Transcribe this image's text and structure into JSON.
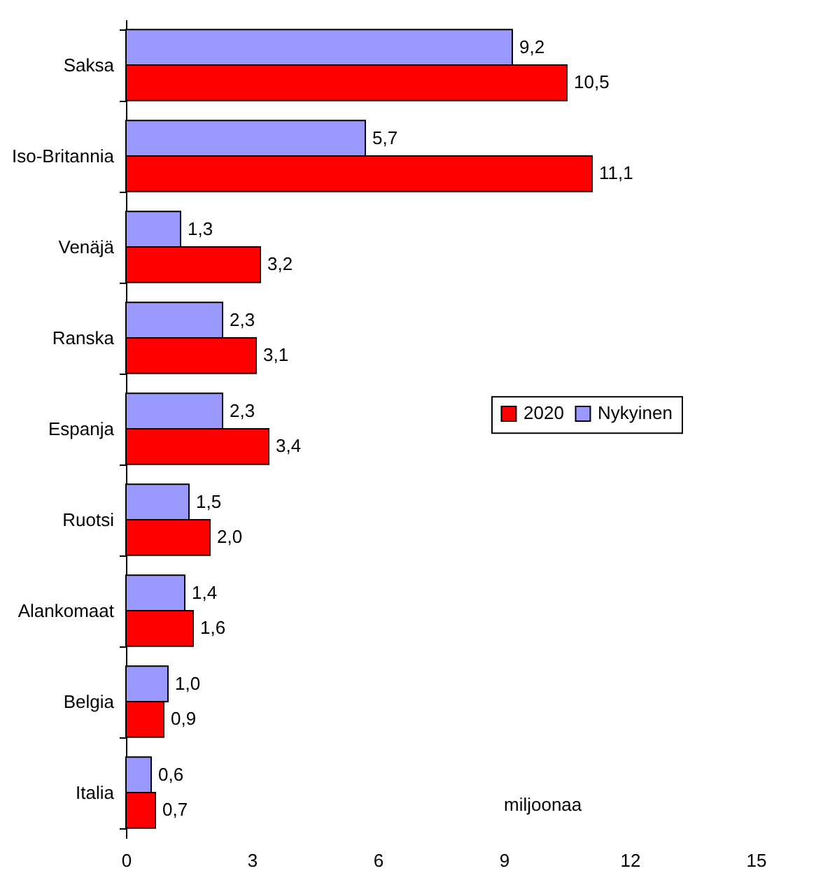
{
  "chart_data": {
    "type": "bar",
    "orientation": "horizontal",
    "categories": [
      "Saksa",
      "Iso-Britannia",
      "Venäjä",
      "Ranska",
      "Espanja",
      "Ruotsi",
      "Alankomaat",
      "Belgia",
      "Italia"
    ],
    "series": [
      {
        "name": "Nykyinen",
        "color": "#9999ff",
        "values": [
          9.2,
          5.7,
          1.3,
          2.3,
          2.3,
          1.5,
          1.4,
          1.0,
          0.6
        ],
        "value_labels": [
          "9,2",
          "5,7",
          "1,3",
          "2,3",
          "2,3",
          "1,5",
          "1,4",
          "1,0",
          "0,6"
        ]
      },
      {
        "name": "2020",
        "color": "#ff0000",
        "values": [
          10.5,
          11.1,
          3.2,
          3.1,
          3.4,
          2.0,
          1.6,
          0.9,
          0.7
        ],
        "value_labels": [
          "10,5",
          "11,1",
          "3,2",
          "3,1",
          "3,4",
          "2,0",
          "1,6",
          "0,9",
          "0,7"
        ]
      }
    ],
    "xlim": [
      0,
      15
    ],
    "xticks": [
      0,
      3,
      6,
      9,
      12,
      15
    ],
    "legend": "right",
    "annotations": [
      "miljoonaa"
    ]
  }
}
